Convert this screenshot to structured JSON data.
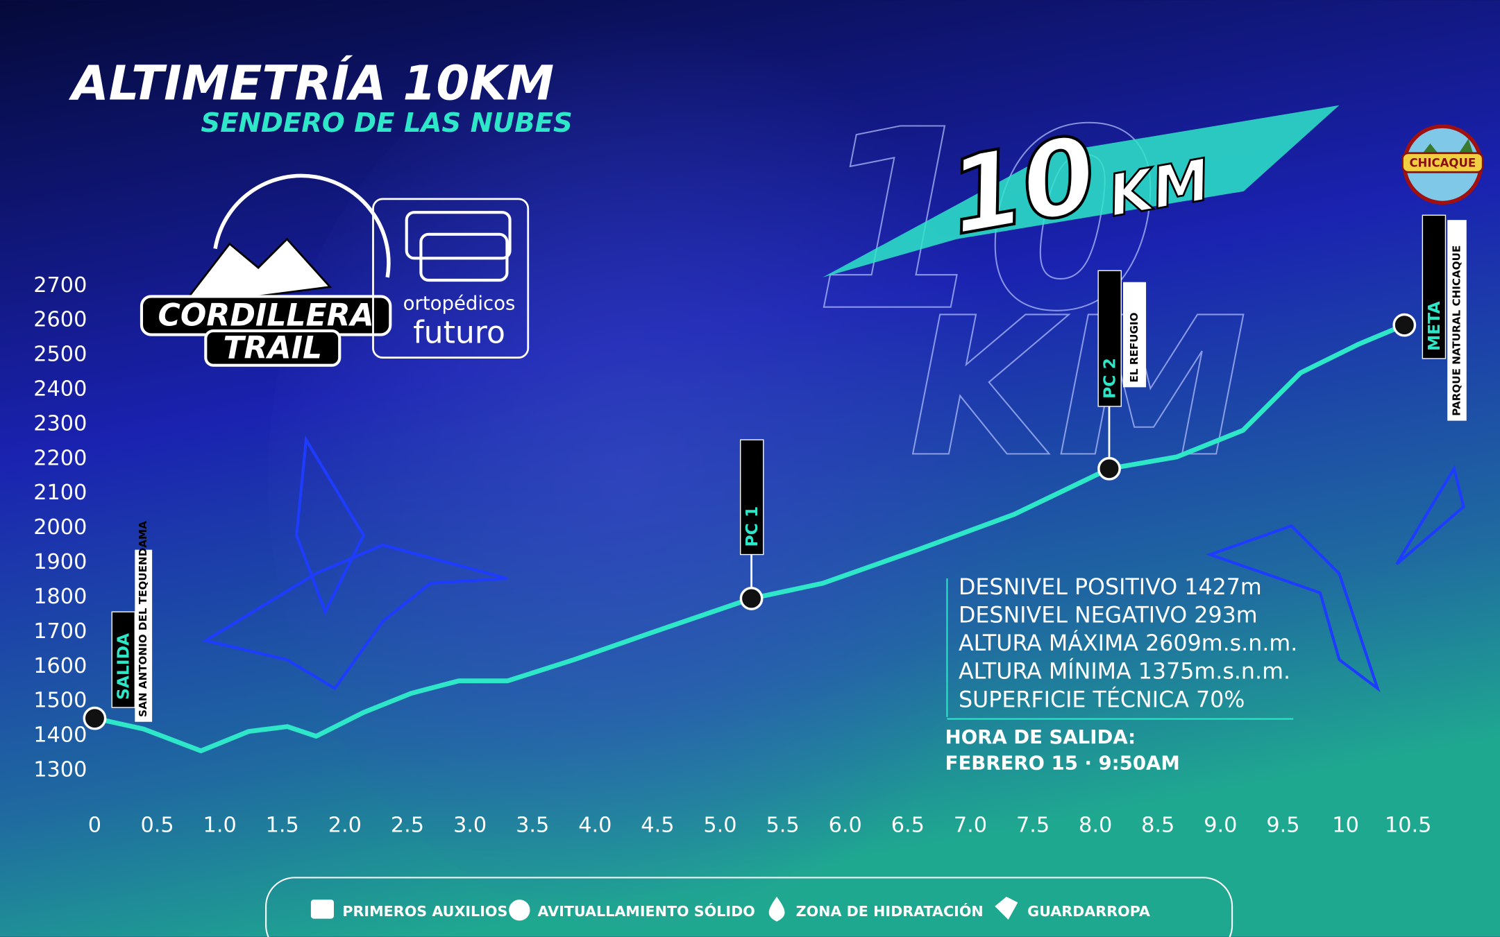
{
  "chart_data": {
    "type": "line",
    "title": "ALTIMETRÍA 10KM",
    "subtitle": "SENDERO DE LAS NUBES",
    "badge": {
      "number": "10",
      "unit": "KM"
    },
    "logos": {
      "brand_1": "CORDILLERA",
      "brand_2": "TRAIL",
      "sponsor_1": "ortopédicos",
      "sponsor_2": "futuro",
      "park": "CHICAQUE"
    },
    "x": [
      0,
      0.39,
      0.85,
      1.23,
      1.54,
      1.77,
      2.15,
      2.53,
      2.91,
      3.3,
      3.83,
      4.44,
      5.25,
      5.82,
      6.58,
      7.35,
      8.11,
      8.65,
      9.18,
      9.64,
      10.1,
      10.47
    ],
    "values": [
      1451,
      1420,
      1357,
      1413,
      1427,
      1399,
      1468,
      1523,
      1559,
      1559,
      1620,
      1697,
      1797,
      1841,
      1938,
      2040,
      2172,
      2206,
      2283,
      2449,
      2531,
      2587
    ],
    "color": "#2ee6c8",
    "xlim": [
      0,
      10.5
    ],
    "xticks": [
      0,
      0.5,
      {
        "value": 1,
        "label": "1.0"
      },
      1.5,
      {
        "value": 2,
        "label": "2.0"
      },
      2.5,
      {
        "value": 3,
        "label": "3.0"
      },
      3.5,
      {
        "value": 4,
        "label": "4.0"
      },
      4.5,
      {
        "value": 5,
        "label": "5.0"
      },
      5.5,
      {
        "value": 6,
        "label": "6.0"
      },
      6.5,
      {
        "value": 7,
        "label": "7.0"
      },
      7.5,
      {
        "value": 8,
        "label": "8.0"
      },
      8.5,
      {
        "value": 9,
        "label": "9.0"
      },
      9.5,
      10,
      10.5
    ],
    "ylim": [
      1300,
      2700
    ],
    "yticks": [
      1300,
      1400,
      1500,
      1600,
      1700,
      1800,
      1900,
      2000,
      2100,
      2200,
      2300,
      2400,
      2500,
      2600,
      2700
    ],
    "checkpoints": [
      {
        "label": "SALIDA",
        "place": "SAN ANTONIO DEL TEQUENDAMA",
        "x": 0,
        "y": 1451
      },
      {
        "label": "PC 1",
        "x": 5.25,
        "y": 1797
      },
      {
        "label": "PC 2",
        "place": "EL REFUGIO",
        "x": 8.11,
        "y": 2172
      },
      {
        "label": "META",
        "place": "PARQUE NATURAL CHICAQUE",
        "x": 10.47,
        "y": 2587
      }
    ],
    "stats": [
      "DESNIVEL POSITIVO 1427m",
      "DESNIVEL NEGATIVO 293m",
      "ALTURA MÁXIMA 2609m.s.n.m.",
      "ALTURA MÍNIMA 1375m.s.n.m.",
      "SUPERFICIE TÉCNICA 70%"
    ],
    "departure": {
      "label": "HORA DE SALIDA:",
      "value": "FEBRERO 15 · 9:50AM"
    },
    "legend_items": [
      "PRIMEROS AUXILIOS",
      "AVITUALLAMIENTO SÓLIDO",
      "ZONA DE HIDRATACIÓN",
      "GUARDARROPA"
    ]
  }
}
